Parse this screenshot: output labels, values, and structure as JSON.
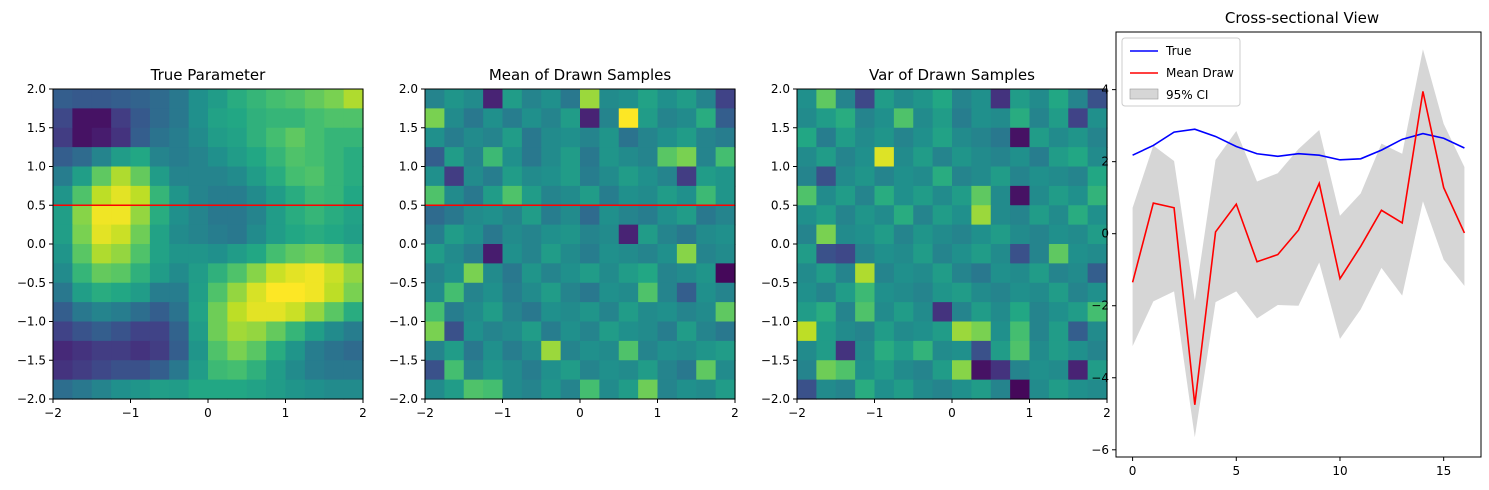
{
  "chart_data": [
    {
      "type": "heatmap",
      "title": "True Parameter",
      "xlim": [
        -2,
        2
      ],
      "ylim": [
        -2,
        2
      ],
      "xticks": [
        "−2",
        "−1",
        "0",
        "1",
        "2"
      ],
      "yticks": [
        "2.0",
        "1.5",
        "1.0",
        "0.5",
        "0.0",
        "−0.5",
        "−1.0",
        "−1.5",
        "−2.0"
      ],
      "colormap": "viridis",
      "hline": {
        "y": 0.5,
        "color": "#ff0000"
      },
      "grid_size": [
        16,
        16
      ],
      "values": [
        [
          0.3,
          0.28,
          0.28,
          0.3,
          0.32,
          0.35,
          0.4,
          0.5,
          0.55,
          0.62,
          0.66,
          0.7,
          0.72,
          0.76,
          0.8,
          0.88
        ],
        [
          0.22,
          0.05,
          0.05,
          0.18,
          0.28,
          0.35,
          0.4,
          0.5,
          0.58,
          0.6,
          0.64,
          0.66,
          0.66,
          0.7,
          0.72,
          0.72
        ],
        [
          0.18,
          0.05,
          0.08,
          0.15,
          0.3,
          0.38,
          0.42,
          0.48,
          0.55,
          0.58,
          0.64,
          0.7,
          0.75,
          0.7,
          0.66,
          0.66
        ],
        [
          0.3,
          0.35,
          0.45,
          0.55,
          0.6,
          0.45,
          0.42,
          0.45,
          0.5,
          0.55,
          0.6,
          0.66,
          0.72,
          0.7,
          0.66,
          0.62
        ],
        [
          0.42,
          0.56,
          0.75,
          0.88,
          0.76,
          0.55,
          0.45,
          0.45,
          0.45,
          0.48,
          0.55,
          0.62,
          0.7,
          0.72,
          0.66,
          0.62
        ],
        [
          0.52,
          0.72,
          0.9,
          0.96,
          0.9,
          0.66,
          0.52,
          0.45,
          0.42,
          0.42,
          0.48,
          0.55,
          0.62,
          0.68,
          0.66,
          0.6
        ],
        [
          0.56,
          0.82,
          0.98,
          0.98,
          0.84,
          0.62,
          0.5,
          0.45,
          0.4,
          0.4,
          0.45,
          0.55,
          0.62,
          0.66,
          0.62,
          0.58
        ],
        [
          0.56,
          0.8,
          0.96,
          0.92,
          0.78,
          0.58,
          0.48,
          0.45,
          0.42,
          0.4,
          0.48,
          0.55,
          0.6,
          0.62,
          0.6,
          0.56
        ],
        [
          0.52,
          0.74,
          0.88,
          0.84,
          0.72,
          0.58,
          0.52,
          0.52,
          0.5,
          0.55,
          0.6,
          0.7,
          0.75,
          0.78,
          0.74,
          0.66
        ],
        [
          0.48,
          0.66,
          0.76,
          0.74,
          0.64,
          0.55,
          0.48,
          0.55,
          0.64,
          0.72,
          0.82,
          0.92,
          0.96,
          0.98,
          0.92,
          0.84
        ],
        [
          0.4,
          0.56,
          0.62,
          0.6,
          0.55,
          0.42,
          0.42,
          0.56,
          0.72,
          0.84,
          0.94,
          1.0,
          1.0,
          0.98,
          0.9,
          0.8
        ],
        [
          0.3,
          0.4,
          0.45,
          0.42,
          0.36,
          0.3,
          0.38,
          0.58,
          0.78,
          0.9,
          0.96,
          0.96,
          0.92,
          0.84,
          0.74,
          0.62
        ],
        [
          0.2,
          0.26,
          0.3,
          0.26,
          0.2,
          0.2,
          0.32,
          0.55,
          0.78,
          0.86,
          0.84,
          0.76,
          0.66,
          0.56,
          0.48,
          0.42
        ],
        [
          0.12,
          0.15,
          0.18,
          0.18,
          0.15,
          0.18,
          0.3,
          0.52,
          0.72,
          0.8,
          0.74,
          0.62,
          0.52,
          0.42,
          0.38,
          0.35
        ],
        [
          0.15,
          0.18,
          0.22,
          0.25,
          0.25,
          0.3,
          0.4,
          0.55,
          0.68,
          0.7,
          0.64,
          0.55,
          0.48,
          0.42,
          0.4,
          0.4
        ],
        [
          0.36,
          0.4,
          0.45,
          0.5,
          0.52,
          0.56,
          0.55,
          0.6,
          0.6,
          0.6,
          0.58,
          0.55,
          0.52,
          0.5,
          0.48,
          0.48
        ]
      ]
    },
    {
      "type": "heatmap",
      "title": "Mean of Drawn Samples",
      "xlim": [
        -2,
        2
      ],
      "ylim": [
        -2,
        2
      ],
      "xticks": [
        "−2",
        "−1",
        "0",
        "1",
        "2"
      ],
      "yticks": [
        "2.0",
        "1.5",
        "1.0",
        "0.5",
        "0.0",
        "−0.5",
        "−1.0",
        "−1.5",
        "−2.0"
      ],
      "colormap": "viridis",
      "hline": {
        "y": 0.5,
        "color": "#ff0000"
      },
      "grid_size": [
        16,
        16
      ],
      "values": [
        [
          0.45,
          0.52,
          0.48,
          0.1,
          0.55,
          0.45,
          0.5,
          0.4,
          0.85,
          0.48,
          0.5,
          0.58,
          0.5,
          0.55,
          0.45,
          0.2
        ],
        [
          0.8,
          0.48,
          0.4,
          0.5,
          0.42,
          0.5,
          0.45,
          0.55,
          0.1,
          0.45,
          1.0,
          0.55,
          0.45,
          0.48,
          0.62,
          0.3
        ],
        [
          0.5,
          0.42,
          0.48,
          0.45,
          0.55,
          0.4,
          0.48,
          0.5,
          0.45,
          0.52,
          0.38,
          0.45,
          0.5,
          0.55,
          0.45,
          0.42
        ],
        [
          0.3,
          0.55,
          0.45,
          0.68,
          0.5,
          0.4,
          0.48,
          0.55,
          0.4,
          0.52,
          0.48,
          0.45,
          0.74,
          0.8,
          0.45,
          0.7
        ],
        [
          0.5,
          0.18,
          0.48,
          0.42,
          0.55,
          0.48,
          0.5,
          0.55,
          0.42,
          0.48,
          0.55,
          0.5,
          0.45,
          0.18,
          0.55,
          0.52
        ],
        [
          0.72,
          0.48,
          0.4,
          0.55,
          0.72,
          0.55,
          0.45,
          0.48,
          0.55,
          0.42,
          0.5,
          0.48,
          0.55,
          0.5,
          0.68,
          0.52
        ],
        [
          0.35,
          0.4,
          0.48,
          0.5,
          0.45,
          0.55,
          0.42,
          0.48,
          0.35,
          0.5,
          0.45,
          0.42,
          0.5,
          0.55,
          0.4,
          0.45
        ],
        [
          0.42,
          0.55,
          0.5,
          0.4,
          0.48,
          0.45,
          0.5,
          0.52,
          0.45,
          0.48,
          0.1,
          0.55,
          0.45,
          0.4,
          0.48,
          0.5
        ],
        [
          0.55,
          0.48,
          0.42,
          0.08,
          0.5,
          0.45,
          0.55,
          0.48,
          0.42,
          0.5,
          0.48,
          0.45,
          0.5,
          0.82,
          0.45,
          0.48
        ],
        [
          0.45,
          0.5,
          0.8,
          0.48,
          0.4,
          0.52,
          0.45,
          0.5,
          0.55,
          0.48,
          0.55,
          0.6,
          0.45,
          0.48,
          0.52,
          0.02
        ],
        [
          0.48,
          0.7,
          0.45,
          0.5,
          0.42,
          0.48,
          0.55,
          0.45,
          0.4,
          0.5,
          0.48,
          0.72,
          0.45,
          0.3,
          0.5,
          0.45
        ],
        [
          0.7,
          0.42,
          0.48,
          0.55,
          0.45,
          0.4,
          0.5,
          0.48,
          0.52,
          0.45,
          0.55,
          0.48,
          0.5,
          0.45,
          0.48,
          0.75
        ],
        [
          0.8,
          0.25,
          0.5,
          0.45,
          0.48,
          0.55,
          0.42,
          0.5,
          0.45,
          0.55,
          0.5,
          0.48,
          0.42,
          0.55,
          0.45,
          0.4
        ],
        [
          0.45,
          0.55,
          0.4,
          0.5,
          0.42,
          0.48,
          0.85,
          0.45,
          0.5,
          0.48,
          0.72,
          0.45,
          0.5,
          0.48,
          0.52,
          0.55
        ],
        [
          0.25,
          0.7,
          0.45,
          0.52,
          0.48,
          0.42,
          0.5,
          0.55,
          0.45,
          0.5,
          0.48,
          0.55,
          0.45,
          0.4,
          0.75,
          0.48
        ],
        [
          0.48,
          0.55,
          0.72,
          0.7,
          0.48,
          0.45,
          0.52,
          0.45,
          0.7,
          0.48,
          0.55,
          0.78,
          0.45,
          0.5,
          0.48,
          0.55
        ]
      ]
    },
    {
      "type": "heatmap",
      "title": "Var of Drawn Samples",
      "xlim": [
        -2,
        2
      ],
      "ylim": [
        -2,
        2
      ],
      "xticks": [
        "−2",
        "−1",
        "0",
        "1",
        "2"
      ],
      "yticks": [
        "2.0",
        "1.5",
        "1.0",
        "0.5",
        "0.0",
        "−0.5",
        "−1.0",
        "−1.5",
        "−2.0"
      ],
      "colormap": "viridis",
      "grid_size": [
        16,
        16
      ],
      "values": [
        [
          0.5,
          0.75,
          0.45,
          0.22,
          0.55,
          0.48,
          0.52,
          0.6,
          0.45,
          0.5,
          0.15,
          0.55,
          0.48,
          0.6,
          0.45,
          0.25
        ],
        [
          0.48,
          0.55,
          0.62,
          0.45,
          0.5,
          0.72,
          0.48,
          0.55,
          0.42,
          0.5,
          0.48,
          0.62,
          0.45,
          0.55,
          0.2,
          0.5
        ],
        [
          0.6,
          0.42,
          0.55,
          0.48,
          0.52,
          0.45,
          0.5,
          0.58,
          0.48,
          0.45,
          0.4,
          0.05,
          0.55,
          0.48,
          0.52,
          0.45
        ],
        [
          0.48,
          0.55,
          0.45,
          0.5,
          0.95,
          0.48,
          0.55,
          0.45,
          0.52,
          0.48,
          0.45,
          0.5,
          0.42,
          0.55,
          0.6,
          0.48
        ],
        [
          0.45,
          0.25,
          0.48,
          0.52,
          0.45,
          0.5,
          0.48,
          0.62,
          0.45,
          0.48,
          0.55,
          0.45,
          0.5,
          0.48,
          0.45,
          0.6
        ],
        [
          0.72,
          0.48,
          0.55,
          0.45,
          0.62,
          0.5,
          0.55,
          0.48,
          0.55,
          0.75,
          0.48,
          0.05,
          0.48,
          0.55,
          0.5,
          0.65
        ],
        [
          0.5,
          0.55,
          0.45,
          0.52,
          0.48,
          0.62,
          0.45,
          0.55,
          0.5,
          0.85,
          0.48,
          0.45,
          0.55,
          0.48,
          0.62,
          0.5
        ],
        [
          0.45,
          0.8,
          0.48,
          0.5,
          0.55,
          0.45,
          0.52,
          0.48,
          0.45,
          0.5,
          0.55,
          0.48,
          0.45,
          0.5,
          0.48,
          0.55
        ],
        [
          0.55,
          0.25,
          0.22,
          0.45,
          0.5,
          0.48,
          0.55,
          0.45,
          0.5,
          0.55,
          0.48,
          0.25,
          0.45,
          0.75,
          0.5,
          0.48
        ],
        [
          0.48,
          0.55,
          0.45,
          0.88,
          0.45,
          0.5,
          0.48,
          0.55,
          0.45,
          0.4,
          0.5,
          0.48,
          0.55,
          0.45,
          0.48,
          0.3
        ],
        [
          0.5,
          0.45,
          0.55,
          0.68,
          0.5,
          0.48,
          0.45,
          0.52,
          0.55,
          0.48,
          0.45,
          0.5,
          0.48,
          0.55,
          0.45,
          0.5
        ],
        [
          0.55,
          0.62,
          0.45,
          0.72,
          0.48,
          0.55,
          0.48,
          0.15,
          0.45,
          0.55,
          0.48,
          0.6,
          0.45,
          0.5,
          0.55,
          0.7
        ],
        [
          0.9,
          0.55,
          0.48,
          0.45,
          0.55,
          0.48,
          0.5,
          0.55,
          0.85,
          0.8,
          0.5,
          0.7,
          0.45,
          0.55,
          0.3,
          0.48
        ],
        [
          0.48,
          0.55,
          0.15,
          0.48,
          0.62,
          0.55,
          0.65,
          0.48,
          0.5,
          0.25,
          0.55,
          0.72,
          0.48,
          0.55,
          0.5,
          0.45
        ],
        [
          0.45,
          0.78,
          0.72,
          0.5,
          0.55,
          0.48,
          0.45,
          0.55,
          0.82,
          0.05,
          0.15,
          0.45,
          0.5,
          0.48,
          0.1,
          0.55
        ],
        [
          0.25,
          0.48,
          0.45,
          0.62,
          0.5,
          0.55,
          0.48,
          0.45,
          0.5,
          0.55,
          0.45,
          0.02,
          0.48,
          0.55,
          0.5,
          0.48
        ]
      ]
    },
    {
      "type": "line",
      "title": "Cross-sectional View",
      "x": [
        0,
        1,
        2,
        3,
        4,
        5,
        6,
        7,
        8,
        9,
        10,
        11,
        12,
        13,
        14,
        15,
        16
      ],
      "xlim": [
        -0.8,
        16.8
      ],
      "ylim": [
        -6.2,
        5.6
      ],
      "xticks": [
        0,
        5,
        10,
        15
      ],
      "yticks": [
        -6,
        -4,
        -2,
        0,
        2,
        4
      ],
      "ytick_labels": [
        "−6",
        "−4",
        "−2",
        "0",
        "2",
        "4"
      ],
      "legend_position": "top-left",
      "series": [
        {
          "name": "True",
          "color": "#0000ff",
          "values": [
            2.18,
            2.45,
            2.82,
            2.9,
            2.7,
            2.42,
            2.22,
            2.15,
            2.22,
            2.18,
            2.05,
            2.08,
            2.32,
            2.62,
            2.78,
            2.65,
            2.38
          ]
        },
        {
          "name": "Mean Draw",
          "color": "#ff0000",
          "values": [
            -1.35,
            0.85,
            0.72,
            -4.75,
            0.05,
            0.82,
            -0.78,
            -0.58,
            0.1,
            1.4,
            -1.25,
            -0.35,
            0.65,
            0.3,
            3.95,
            1.28,
            0.02
          ]
        }
      ],
      "band": {
        "name": "95% CI",
        "color": "#bbbbbb",
        "lower": [
          -3.12,
          -1.88,
          -1.6,
          -5.65,
          -1.9,
          -1.6,
          -2.35,
          -1.98,
          -2.0,
          -0.8,
          -2.92,
          -2.1,
          -0.95,
          -1.72,
          0.9,
          -0.72,
          -1.45
        ],
        "upper": [
          0.72,
          2.45,
          2.02,
          -1.85,
          2.05,
          2.85,
          1.45,
          1.68,
          2.35,
          2.88,
          0.5,
          1.12,
          2.5,
          2.22,
          5.12,
          3.05,
          1.85
        ]
      }
    }
  ]
}
